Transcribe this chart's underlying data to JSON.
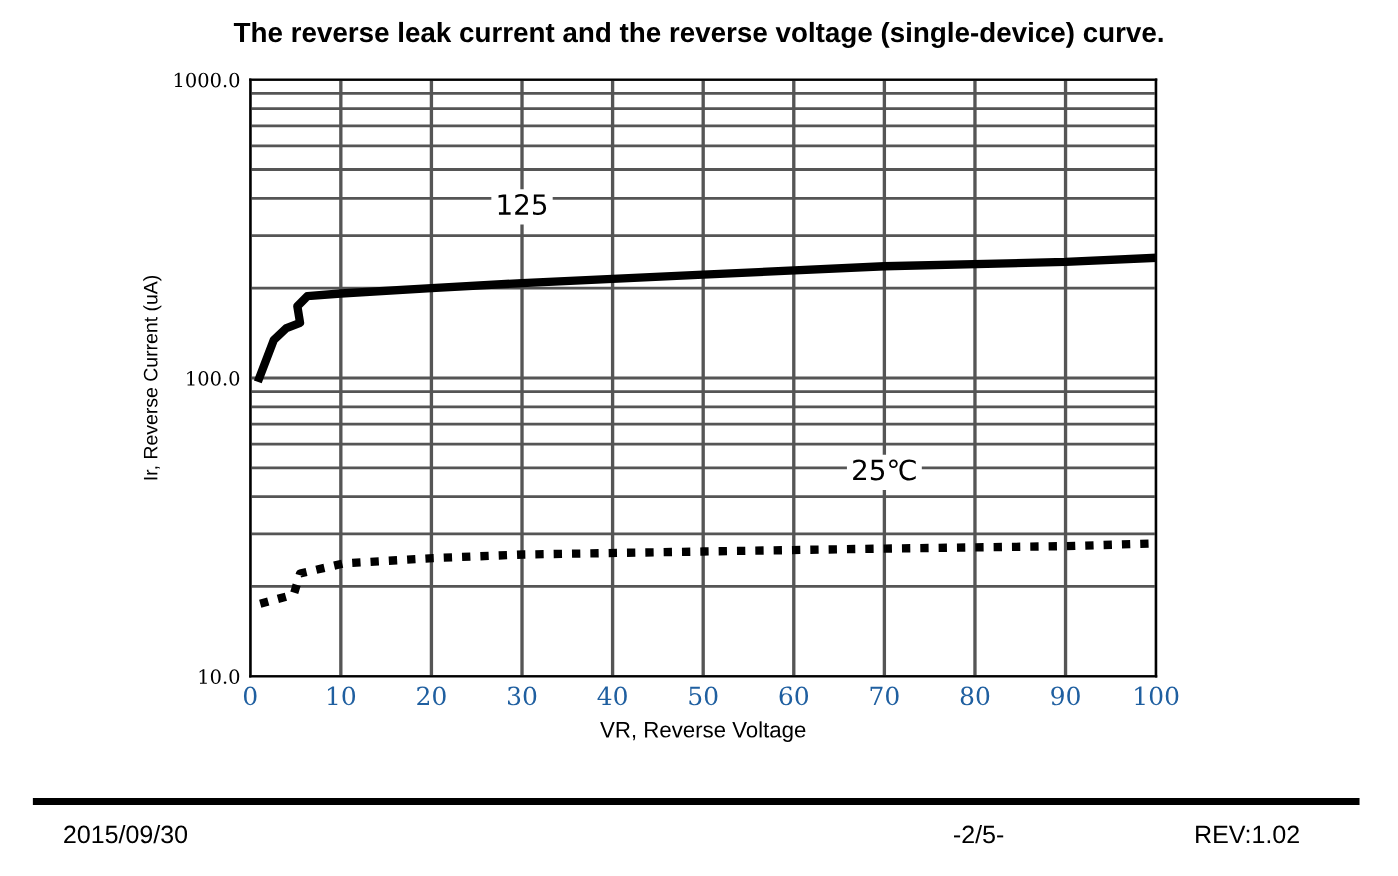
{
  "chart_data": {
    "type": "line",
    "title": "The reverse leak current and the reverse voltage (single-device) curve.",
    "xlabel": "VR, Reverse Voltage",
    "ylabel": "Ir, Reverse Current (uA)",
    "series": [
      {
        "name": "125",
        "color": "#000000",
        "line_style": "solid",
        "x": [
          1.0,
          2.6,
          4.0,
          5.5,
          5.2,
          6.3,
          10,
          20,
          30,
          50,
          70,
          90,
          100
        ],
        "values": [
          100,
          134,
          147,
          153,
          174,
          188,
          192,
          200,
          208,
          222,
          237,
          245,
          253
        ]
      },
      {
        "name": "25℃",
        "color": "#000000",
        "line_style": "dotted",
        "x": [
          1.1,
          4.8,
          5.5,
          10.3,
          20.2,
          30.2,
          50,
          70,
          90,
          100
        ],
        "values": [
          17.5,
          18.8,
          22.1,
          23.9,
          24.9,
          25.6,
          26.2,
          26.8,
          27.3,
          27.9
        ]
      }
    ],
    "log": "y",
    "xlim": [
      0,
      100
    ],
    "xticks": [
      0,
      10,
      20,
      30,
      40,
      50,
      60,
      70,
      80,
      90,
      100
    ],
    "ylim": [
      10,
      1000
    ],
    "yticks": [
      {
        "value": 10,
        "label": "10.0"
      },
      {
        "value": 100,
        "label": "100.0"
      },
      {
        "value": 1000,
        "label": "1000.0"
      }
    ],
    "grid": true,
    "legend": false,
    "annotations": [
      "2015/09/30",
      "-2/5-",
      "REV:1.02"
    ]
  }
}
